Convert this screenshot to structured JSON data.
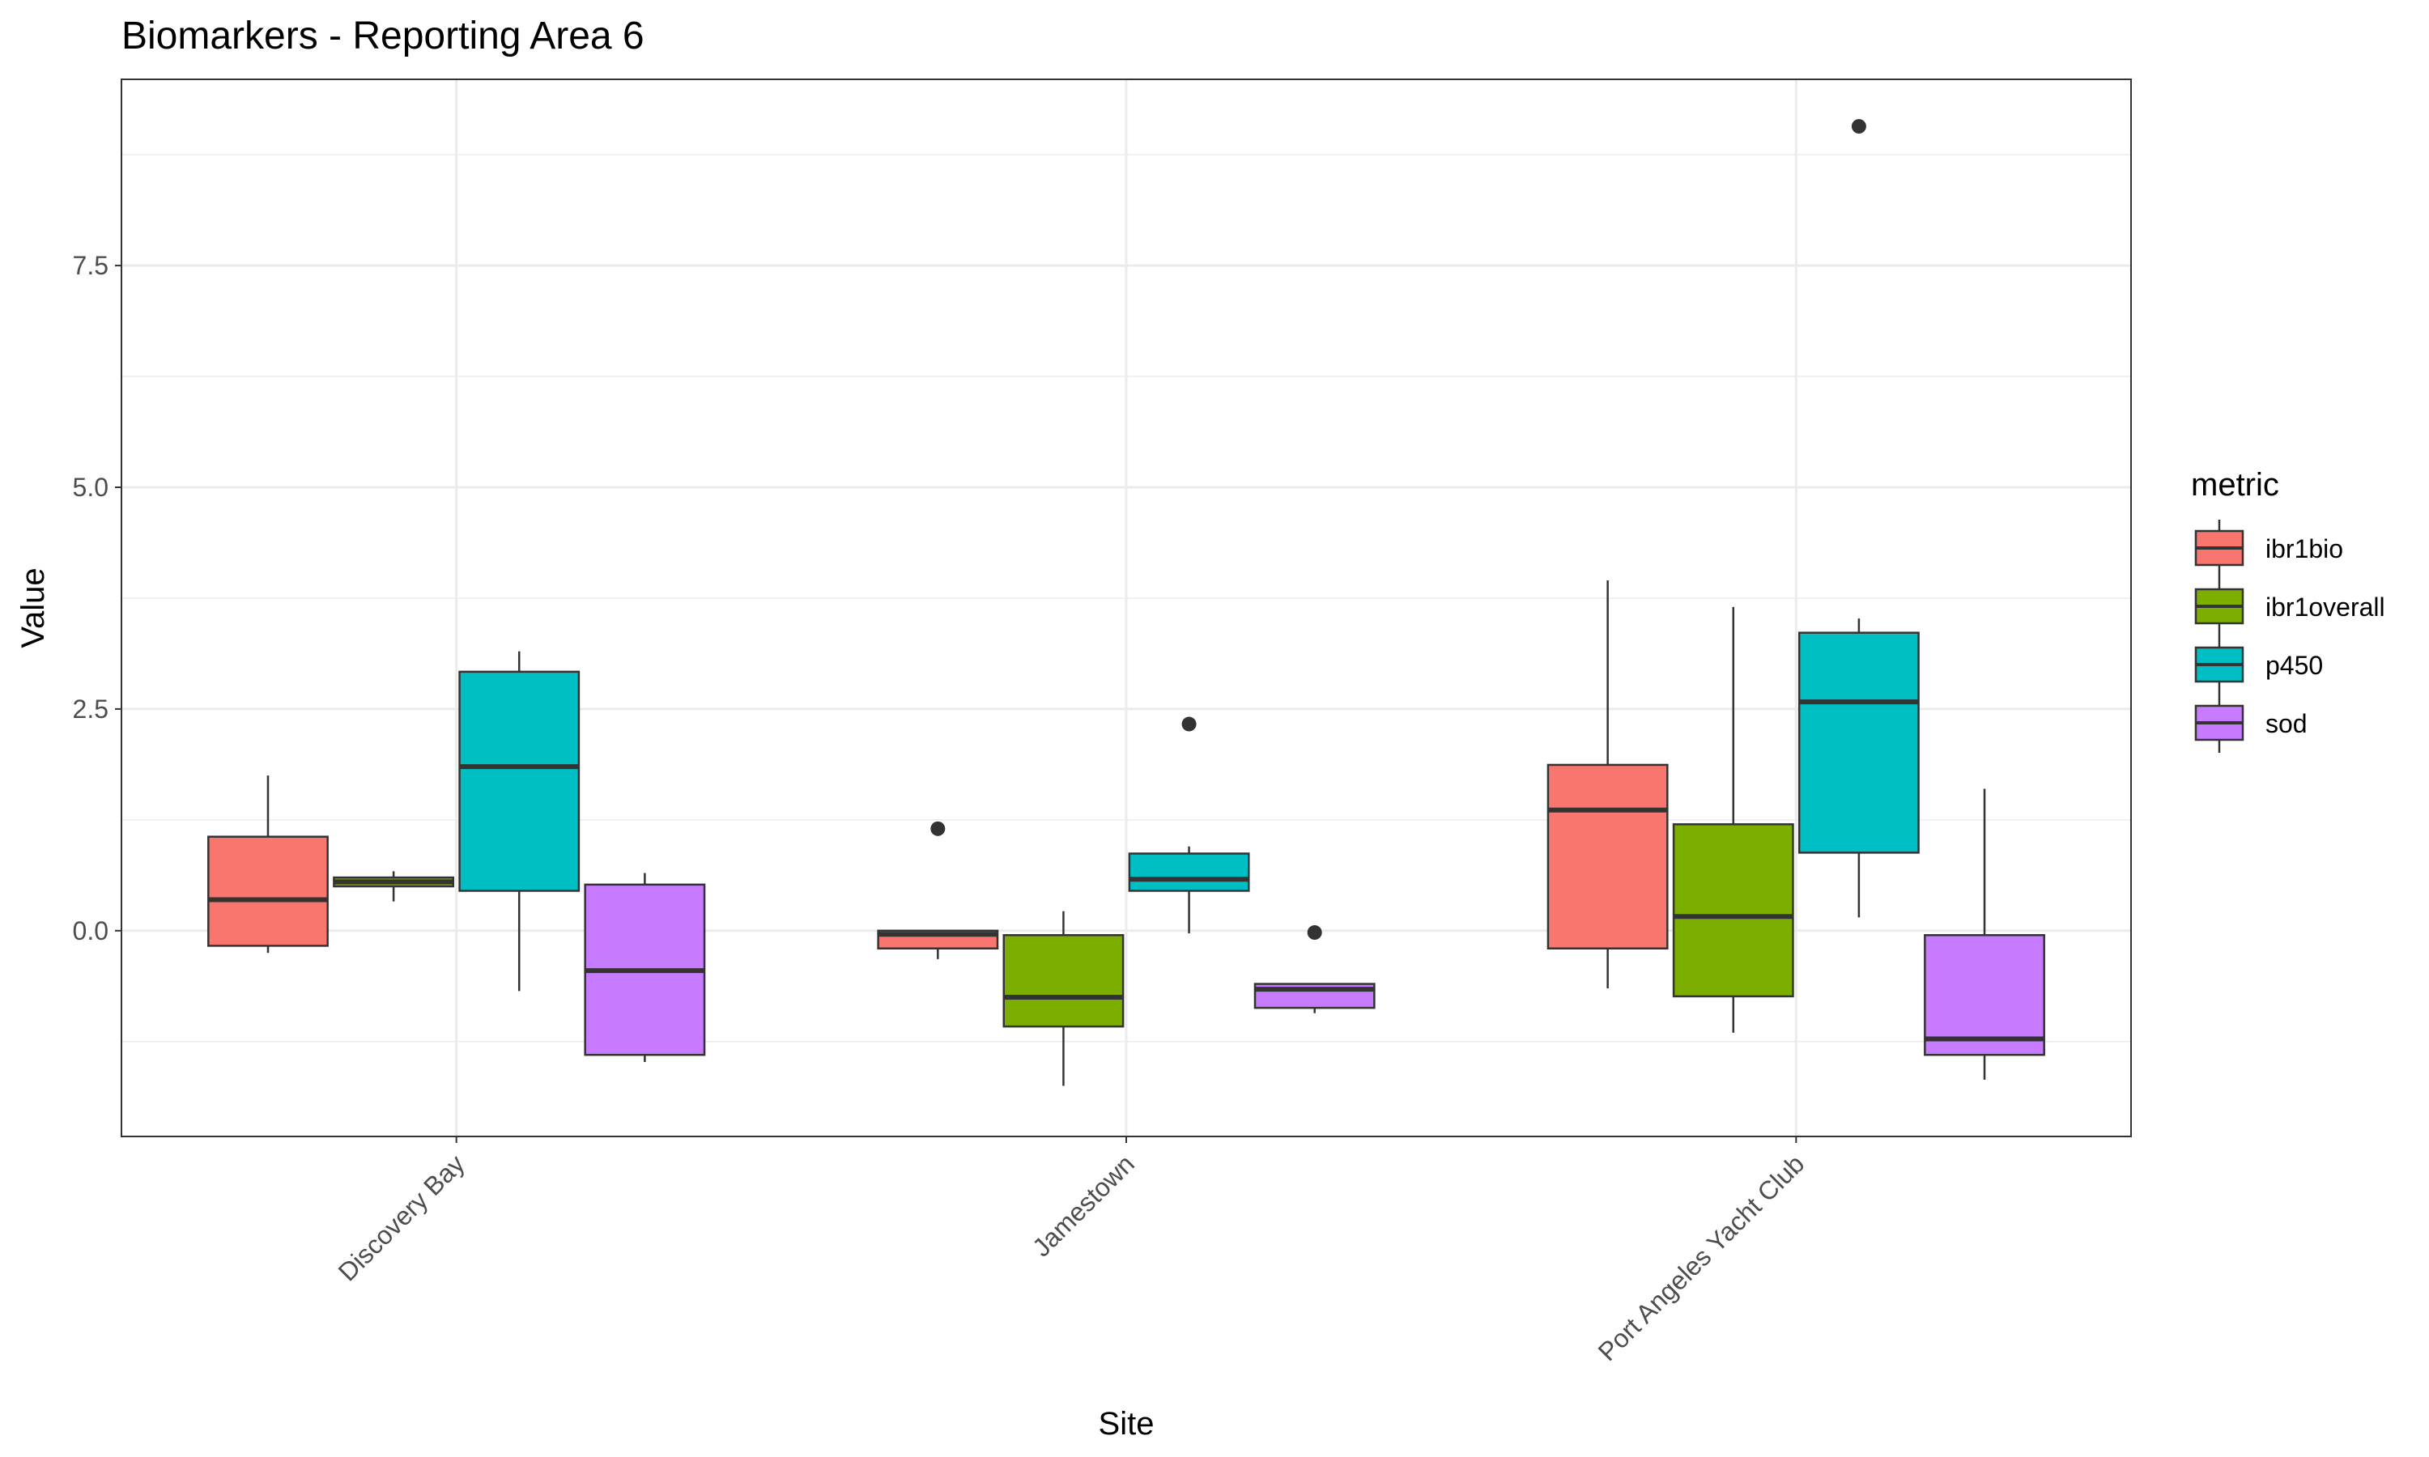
{
  "chart_data": {
    "type": "boxplot",
    "title": "Biomarkers - Reporting Area 6",
    "xlabel": "Site",
    "ylabel": "Value",
    "ylim": [
      -2.32,
      9.6
    ],
    "yticks": [
      0.0,
      2.5,
      5.0,
      7.5
    ],
    "ytick_labels": [
      "0.0",
      "2.5",
      "5.0",
      "7.5"
    ],
    "categories": [
      "Discovery Bay",
      "Jamestown",
      "Port Angeles Yacht Club"
    ],
    "legend": {
      "title": "metric",
      "position": "right"
    },
    "grid": true,
    "series": [
      {
        "name": "ibr1bio",
        "color": "#F8766D",
        "boxes": [
          {
            "whisker_low": -0.25,
            "q1": -0.17,
            "median": 0.35,
            "q3": 1.06,
            "whisker_high": 1.75,
            "outliers": []
          },
          {
            "whisker_low": -0.32,
            "q1": -0.2,
            "median": -0.04,
            "q3": 0.0,
            "whisker_high": 0.0,
            "outliers": [
              1.15
            ]
          },
          {
            "whisker_low": -0.65,
            "q1": -0.2,
            "median": 1.36,
            "q3": 1.87,
            "whisker_high": 3.95,
            "outliers": []
          }
        ]
      },
      {
        "name": "ibr1overall",
        "color": "#7CAE00",
        "boxes": [
          {
            "whisker_low": 0.33,
            "q1": 0.5,
            "median": 0.55,
            "q3": 0.6,
            "whisker_high": 0.67,
            "outliers": []
          },
          {
            "whisker_low": -1.75,
            "q1": -1.08,
            "median": -0.75,
            "q3": -0.05,
            "whisker_high": 0.22,
            "outliers": []
          },
          {
            "whisker_low": -1.15,
            "q1": -0.74,
            "median": 0.16,
            "q3": 1.2,
            "whisker_high": 3.65,
            "outliers": []
          }
        ]
      },
      {
        "name": "p450",
        "color": "#00BFC4",
        "boxes": [
          {
            "whisker_low": -0.68,
            "q1": 0.45,
            "median": 1.85,
            "q3": 2.92,
            "whisker_high": 3.15,
            "outliers": []
          },
          {
            "whisker_low": -0.03,
            "q1": 0.45,
            "median": 0.58,
            "q3": 0.87,
            "whisker_high": 0.95,
            "outliers": [
              2.33
            ]
          },
          {
            "whisker_low": 0.15,
            "q1": 0.88,
            "median": 2.58,
            "q3": 3.36,
            "whisker_high": 3.52,
            "outliers": [
              9.07
            ]
          }
        ]
      },
      {
        "name": "sod",
        "color": "#C77CFF",
        "boxes": [
          {
            "whisker_low": -1.48,
            "q1": -1.4,
            "median": -0.45,
            "q3": 0.52,
            "whisker_high": 0.65,
            "outliers": []
          },
          {
            "whisker_low": -0.93,
            "q1": -0.87,
            "median": -0.66,
            "q3": -0.6,
            "whisker_high": -0.6,
            "outliers": [
              -0.02
            ]
          },
          {
            "whisker_low": -1.68,
            "q1": -1.4,
            "median": -1.22,
            "q3": -0.05,
            "whisker_high": 1.6,
            "outliers": []
          }
        ]
      }
    ]
  }
}
